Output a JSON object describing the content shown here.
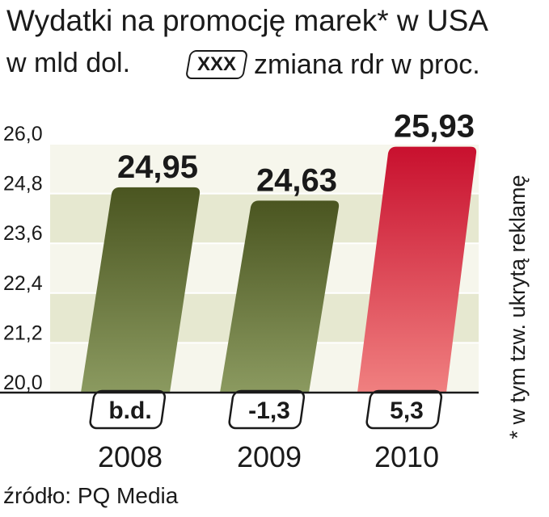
{
  "header": {
    "title": "Wydatki na promocję marek* w USA",
    "unit": "w mld dol.",
    "legend_box": "XXX",
    "legend_text": "zmiana rdr w proc."
  },
  "source": "źródło: PQ Media",
  "footnote": "* w tym tzw. ukrytą reklamę",
  "colors": {
    "olive_top": "#4a5520",
    "olive_bottom": "#8b9a60",
    "red_top": "#c8102e",
    "red_bottom": "#f08080",
    "band_dark": "#e6e8d0",
    "band_light": "#f6f6ec"
  },
  "chart_data": {
    "type": "bar",
    "categories": [
      "2008",
      "2009",
      "2010"
    ],
    "values": [
      24.95,
      24.63,
      25.93
    ],
    "value_labels": [
      "24,95",
      "24,63",
      "25,93"
    ],
    "change_labels": [
      "b.d.",
      "-1,3",
      "5,3"
    ],
    "yticks": [
      20.0,
      21.2,
      22.4,
      23.6,
      24.8,
      26.0
    ],
    "ytick_labels": [
      "20,0",
      "21,2",
      "22,4",
      "23,6",
      "24,8",
      "26,0"
    ],
    "ylim": [
      20.0,
      26.0
    ],
    "highlight_index": 2,
    "grid": true
  }
}
